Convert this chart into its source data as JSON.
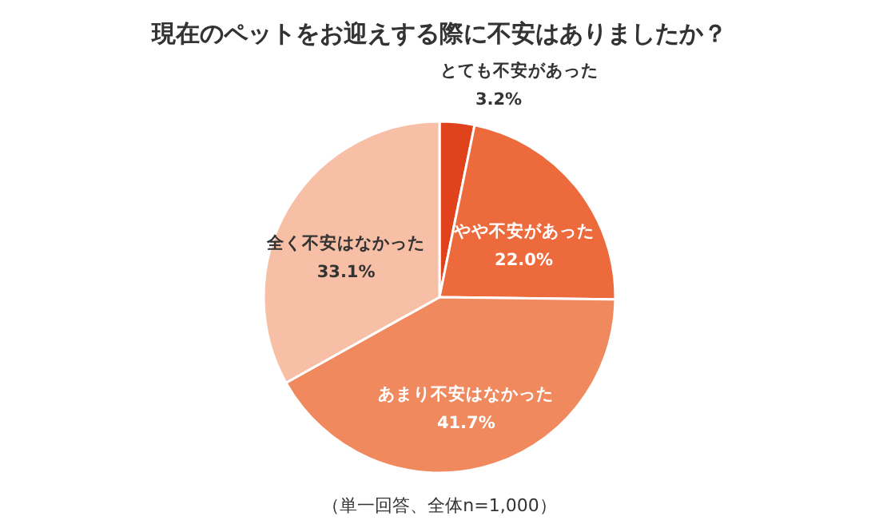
{
  "chart_data": {
    "type": "pie",
    "title": "現在のペットをお迎えする際に不安はありましたか？",
    "categories": [
      "とても不安があった",
      "やや不安があった",
      "あまり不安はなかった",
      "全く不安はなかった"
    ],
    "values": [
      3.2,
      22.0,
      41.7,
      33.1
    ],
    "value_labels": [
      "3.2%",
      "22.0%",
      "41.7%",
      "33.1%"
    ],
    "colors": [
      "#e0421b",
      "#ec6a3c",
      "#f0895e",
      "#f7bfa5"
    ],
    "annotations": [
      "（単一回答、全体n=1,000）"
    ]
  }
}
